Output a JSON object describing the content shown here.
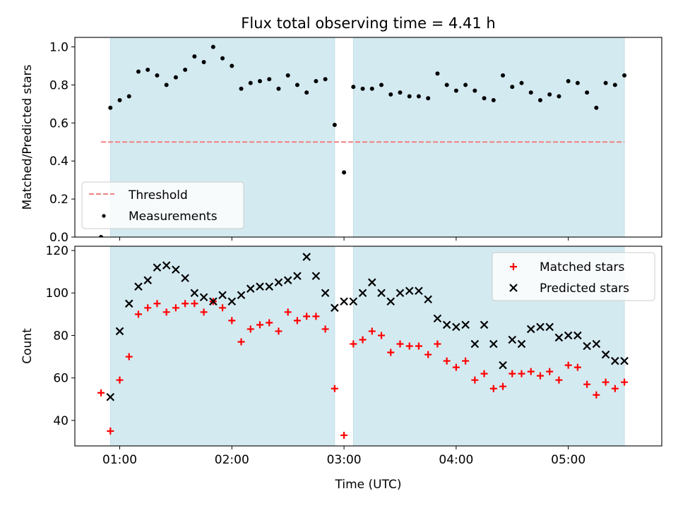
{
  "chart_data": [
    {
      "type": "scatter",
      "title": "Flux total observing time = 4.41 h",
      "xlabel": "",
      "ylabel": "Matched/Predicted stars",
      "xlim": [
        "00:36",
        "05:50"
      ],
      "ylim": [
        0,
        1.05
      ],
      "yticks": [
        0.0,
        0.2,
        0.4,
        0.6,
        0.8,
        1.0
      ],
      "ytick_labels": [
        "0.0",
        "0.2",
        "0.4",
        "0.6",
        "0.8",
        "1.0"
      ],
      "xticks": [
        "01:00",
        "02:00",
        "03:00",
        "04:00",
        "05:00"
      ],
      "xtick_labels_shown": false,
      "shaded_intervals": [
        [
          "00:55",
          "02:55"
        ],
        [
          "03:05",
          "05:30"
        ]
      ],
      "shade_color": "#d4eaf1",
      "threshold": {
        "name": "Threshold",
        "value": 0.5,
        "x_range": [
          "00:50",
          "05:30"
        ],
        "color": "#f08080",
        "style": "dashed"
      },
      "legend": {
        "position": "lower-left",
        "entries": [
          "Threshold",
          "Measurements"
        ]
      },
      "series": [
        {
          "name": "Measurements",
          "color": "#000000",
          "marker": "dot",
          "x": [
            "00:50",
            "00:55",
            "01:00",
            "01:05",
            "01:10",
            "01:15",
            "01:20",
            "01:25",
            "01:30",
            "01:35",
            "01:40",
            "01:45",
            "01:50",
            "01:55",
            "02:00",
            "02:05",
            "02:10",
            "02:15",
            "02:20",
            "02:25",
            "02:30",
            "02:35",
            "02:40",
            "02:45",
            "02:50",
            "02:55",
            "03:00",
            "03:05",
            "03:10",
            "03:15",
            "03:20",
            "03:25",
            "03:30",
            "03:35",
            "03:40",
            "03:45",
            "03:50",
            "03:55",
            "04:00",
            "04:05",
            "04:10",
            "04:15",
            "04:20",
            "04:25",
            "04:30",
            "04:35",
            "04:40",
            "04:45",
            "04:50",
            "04:55",
            "05:00",
            "05:05",
            "05:10",
            "05:15",
            "05:20",
            "05:25",
            "05:30"
          ],
          "y": [
            0.0,
            0.68,
            0.72,
            0.74,
            0.87,
            0.88,
            0.85,
            0.8,
            0.84,
            0.88,
            0.95,
            0.92,
            1.0,
            0.94,
            0.9,
            0.78,
            0.81,
            0.82,
            0.83,
            0.78,
            0.85,
            0.8,
            0.76,
            0.82,
            0.83,
            0.59,
            0.34,
            0.79,
            0.78,
            0.78,
            0.8,
            0.75,
            0.76,
            0.74,
            0.74,
            0.73,
            0.86,
            0.8,
            0.77,
            0.8,
            0.77,
            0.73,
            0.72,
            0.85,
            0.79,
            0.81,
            0.76,
            0.72,
            0.75,
            0.74,
            0.82,
            0.81,
            0.76,
            0.68,
            0.81,
            0.8,
            0.85
          ]
        }
      ]
    },
    {
      "type": "scatter",
      "title": "",
      "xlabel": "Time (UTC)",
      "ylabel": "Count",
      "xlim": [
        "00:36",
        "05:50"
      ],
      "ylim": [
        28,
        122
      ],
      "yticks": [
        40,
        60,
        80,
        100,
        120
      ],
      "ytick_labels": [
        "40",
        "60",
        "80",
        "100",
        "120"
      ],
      "xticks": [
        "01:00",
        "02:00",
        "03:00",
        "04:00",
        "05:00"
      ],
      "xtick_labels": [
        "01:00",
        "02:00",
        "03:00",
        "04:00",
        "05:00"
      ],
      "shaded_intervals": [
        [
          "00:55",
          "02:55"
        ],
        [
          "03:05",
          "05:30"
        ]
      ],
      "shade_color": "#d4eaf1",
      "legend": {
        "position": "upper-right",
        "entries": [
          "Matched stars",
          "Predicted stars"
        ]
      },
      "x": [
        "00:50",
        "00:55",
        "01:00",
        "01:05",
        "01:10",
        "01:15",
        "01:20",
        "01:25",
        "01:30",
        "01:35",
        "01:40",
        "01:45",
        "01:50",
        "01:55",
        "02:00",
        "02:05",
        "02:10",
        "02:15",
        "02:20",
        "02:25",
        "02:30",
        "02:35",
        "02:40",
        "02:45",
        "02:50",
        "02:55",
        "03:00",
        "03:05",
        "03:10",
        "03:15",
        "03:20",
        "03:25",
        "03:30",
        "03:35",
        "03:40",
        "03:45",
        "03:50",
        "03:55",
        "04:00",
        "04:05",
        "04:10",
        "04:15",
        "04:20",
        "04:25",
        "04:30",
        "04:35",
        "04:40",
        "04:45",
        "04:50",
        "04:55",
        "05:00",
        "05:05",
        "05:10",
        "05:15",
        "05:20",
        "05:25",
        "05:30"
      ],
      "series": [
        {
          "name": "Matched stars",
          "color": "#ff0000",
          "marker": "plus",
          "values": [
            53,
            35,
            59,
            70,
            90,
            93,
            95,
            91,
            93,
            95,
            95,
            91,
            96,
            93,
            87,
            77,
            83,
            85,
            86,
            82,
            91,
            87,
            89,
            89,
            83,
            55,
            33,
            76,
            78,
            82,
            80,
            72,
            76,
            75,
            75,
            71,
            76,
            68,
            65,
            68,
            59,
            62,
            55,
            56,
            62,
            62,
            63,
            61,
            63,
            59,
            66,
            65,
            57,
            52,
            58,
            55,
            58
          ]
        },
        {
          "name": "Predicted stars",
          "color": "#000000",
          "marker": "x",
          "values": [
            null,
            51,
            82,
            95,
            103,
            106,
            112,
            113,
            111,
            107,
            100,
            98,
            96,
            99,
            96,
            99,
            102,
            103,
            103,
            105,
            106,
            108,
            117,
            108,
            100,
            93,
            96,
            96,
            100,
            105,
            100,
            96,
            100,
            101,
            101,
            97,
            88,
            85,
            84,
            85,
            76,
            85,
            76,
            66,
            78,
            76,
            83,
            84,
            84,
            79,
            80,
            80,
            75,
            76,
            71,
            68,
            68
          ]
        }
      ]
    }
  ]
}
